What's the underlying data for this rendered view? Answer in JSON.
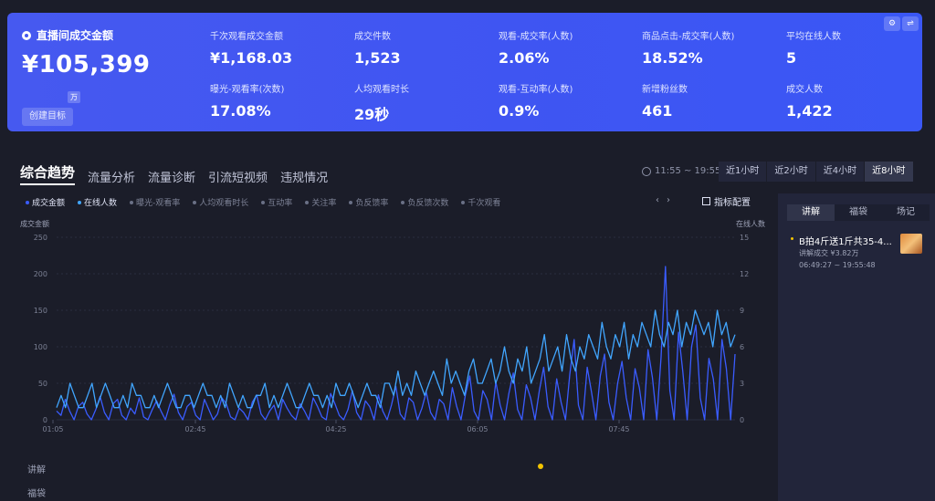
{
  "banner": {
    "title": "直播间成交金额",
    "main_value": "¥105,399",
    "unit": "万",
    "create_btn": "创建目标",
    "tools": [
      "⚙",
      "⇌"
    ],
    "metrics": [
      {
        "label": "千次观看成交金额",
        "value": "¥1,168.03"
      },
      {
        "label": "成交件数",
        "value": "1,523"
      },
      {
        "label": "观看-成交率(人数)",
        "value": "2.06%"
      },
      {
        "label": "商品点击-成交率(人数)",
        "value": "18.52%"
      },
      {
        "label": "平均在线人数",
        "value": "5"
      },
      {
        "label": "曝光-观看率(次数)",
        "value": "17.08%"
      },
      {
        "label": "人均观看时长",
        "value": "29秒"
      },
      {
        "label": "观看-互动率(人数)",
        "value": "0.9%"
      },
      {
        "label": "新增粉丝数",
        "value": "461"
      },
      {
        "label": "成交人数",
        "value": "1,422"
      }
    ]
  },
  "tabs": [
    "综合趋势",
    "流量分析",
    "流量诊断",
    "引流短视频",
    "违规情况"
  ],
  "time_range": "11:55 ~ 19:55",
  "range_buttons": [
    "近1小时",
    "近2小时",
    "近4小时",
    "近8小时"
  ],
  "legend": [
    {
      "label": "成交金额",
      "on": true,
      "color": "#3a5cff"
    },
    {
      "label": "在线人数",
      "on": true,
      "color": "#41a6ff"
    },
    {
      "label": "曝光-观看率",
      "on": false,
      "color": "#6a7086"
    },
    {
      "label": "人均观看时长",
      "on": false,
      "color": "#6a7086"
    },
    {
      "label": "互动率",
      "on": false,
      "color": "#6a7086"
    },
    {
      "label": "关注率",
      "on": false,
      "color": "#6a7086"
    },
    {
      "label": "负反馈率",
      "on": false,
      "color": "#6a7086"
    },
    {
      "label": "负反馈次数",
      "on": false,
      "color": "#6a7086"
    },
    {
      "label": "千次观看",
      "on": false,
      "color": "#6a7086"
    }
  ],
  "legend_nav": [
    "‹",
    "›"
  ],
  "config_label": "指标配置",
  "right_panel": {
    "tabs": [
      "讲解",
      "福袋",
      "场记"
    ],
    "item": {
      "title": "B拍4斤送1斤共35-4...",
      "sub1": "讲解成交 ¥3.82万",
      "sub2": "06:49:27 ~ 19:55:48"
    }
  },
  "lanes": [
    "讲解",
    "福袋"
  ],
  "chart_data": {
    "type": "line",
    "left_axis_title": "成交金额",
    "right_axis_title": "在线人数",
    "x_ticks": [
      "01:05",
      "02:45",
      "04:25",
      "06:05",
      "07:45"
    ],
    "y_left_ticks": [
      0,
      50,
      100,
      150,
      200,
      250
    ],
    "y_right_ticks": [
      0,
      3,
      6,
      9,
      12,
      15
    ],
    "ylim_left": [
      0,
      250
    ],
    "ylim_right": [
      0,
      15
    ],
    "series": [
      {
        "name": "成交金额",
        "color": "#3a5cff",
        "axis": "left",
        "values": [
          12,
          6,
          28,
          12,
          0,
          18,
          24,
          8,
          0,
          14,
          32,
          10,
          0,
          22,
          28,
          6,
          0,
          16,
          8,
          30,
          4,
          0,
          14,
          26,
          12,
          0,
          20,
          35,
          10,
          0,
          18,
          24,
          6,
          0,
          28,
          14,
          0,
          8,
          30,
          22,
          4,
          0,
          16,
          10,
          0,
          24,
          34,
          8,
          0,
          12,
          20,
          0,
          28,
          16,
          6,
          0,
          22,
          12,
          0,
          30,
          18,
          4,
          0,
          36,
          22,
          6,
          0,
          14,
          40,
          10,
          0,
          26,
          18,
          0,
          34,
          12,
          0,
          20,
          46,
          8,
          0,
          30,
          24,
          0,
          16,
          38,
          10,
          0,
          28,
          22,
          0,
          44,
          18,
          0,
          34,
          60,
          12,
          0,
          40,
          28,
          0,
          52,
          20,
          0,
          36,
          64,
          14,
          0,
          48,
          30,
          0,
          40,
          72,
          18,
          0,
          56,
          24,
          0,
          62,
          110,
          20,
          0,
          72,
          38,
          0,
          60,
          90,
          24,
          0,
          50,
          80,
          30,
          0,
          70,
          44,
          0,
          96,
          58,
          0,
          86,
          210,
          40,
          0,
          120,
          66,
          0,
          100,
          130,
          30,
          0,
          84,
          56,
          0,
          110,
          70,
          0,
          90
        ]
      },
      {
        "name": "在线人数",
        "color": "#41a6ff",
        "axis": "right",
        "values": [
          1,
          2,
          1,
          3,
          2,
          1,
          1,
          2,
          3,
          1,
          2,
          3,
          2,
          1,
          1,
          2,
          1,
          3,
          2,
          2,
          1,
          1,
          2,
          1,
          2,
          3,
          2,
          1,
          1,
          2,
          2,
          1,
          2,
          3,
          2,
          2,
          1,
          2,
          1,
          3,
          2,
          1,
          2,
          1,
          1,
          2,
          2,
          3,
          1,
          2,
          1,
          2,
          3,
          2,
          1,
          1,
          2,
          3,
          2,
          2,
          1,
          2,
          1,
          3,
          2,
          2,
          3,
          2,
          1,
          2,
          3,
          2,
          2,
          1,
          3,
          3,
          2,
          4,
          2,
          3,
          2,
          4,
          3,
          2,
          3,
          4,
          3,
          2,
          5,
          3,
          4,
          3,
          2,
          4,
          5,
          3,
          3,
          4,
          5,
          3,
          4,
          6,
          4,
          3,
          5,
          4,
          6,
          3,
          4,
          5,
          7,
          4,
          5,
          6,
          4,
          7,
          5,
          4,
          6,
          5,
          7,
          6,
          5,
          8,
          6,
          5,
          7,
          6,
          8,
          5,
          7,
          6,
          8,
          7,
          6,
          9,
          7,
          6,
          8,
          7,
          9,
          6,
          8,
          7,
          9,
          8,
          7,
          8,
          6,
          9,
          7,
          8,
          6,
          7
        ]
      }
    ]
  }
}
